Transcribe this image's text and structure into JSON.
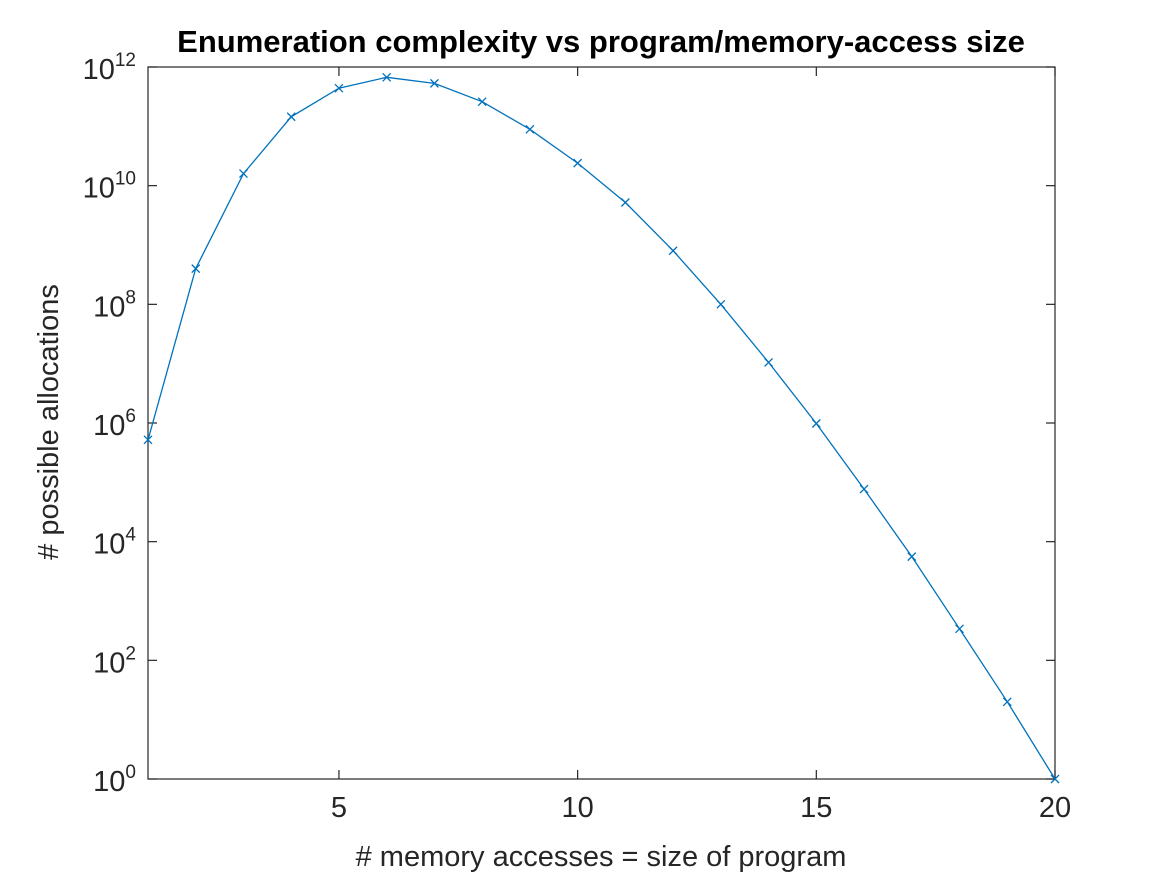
{
  "chart_data": {
    "type": "line",
    "title": "Enumeration complexity vs program/memory-access size",
    "xlabel": "# memory accesses = size of program",
    "ylabel": "# possible allocations",
    "xlim": [
      1,
      20
    ],
    "ylim_log10": [
      0,
      12
    ],
    "yscale": "log",
    "grid": false,
    "box": true,
    "marker": "x",
    "line_color": "#0072BD",
    "axis_color": "#262626",
    "x_ticks": [
      {
        "value": 5,
        "label": "5"
      },
      {
        "value": 10,
        "label": "10"
      },
      {
        "value": 15,
        "label": "15"
      },
      {
        "value": 20,
        "label": "20"
      }
    ],
    "y_ticks": [
      {
        "exp": 0,
        "base": "10",
        "sup": "0"
      },
      {
        "exp": 2,
        "base": "10",
        "sup": "2"
      },
      {
        "exp": 4,
        "base": "10",
        "sup": "4"
      },
      {
        "exp": 6,
        "base": "10",
        "sup": "6"
      },
      {
        "exp": 8,
        "base": "10",
        "sup": "8"
      },
      {
        "exp": 10,
        "base": "10",
        "sup": "10"
      },
      {
        "exp": 12,
        "base": "10",
        "sup": "12"
      }
    ],
    "series": [
      {
        "x": [
          1,
          2,
          3,
          4,
          5,
          6,
          7,
          8,
          9,
          10,
          11,
          12,
          13,
          14,
          15,
          16,
          17,
          18,
          19,
          20
        ],
        "y": [
          520000.0,
          400000000.0,
          16000000000.0,
          145000000000.0,
          440000000000.0,
          670000000000.0,
          530000000000.0,
          260000000000.0,
          89000000000.0,
          24000000000.0,
          5200000000.0,
          800000000.0,
          100000000.0,
          10500000.0,
          980000.0,
          77000.0,
          5600.0,
          340.0,
          20,
          1
        ]
      }
    ]
  }
}
